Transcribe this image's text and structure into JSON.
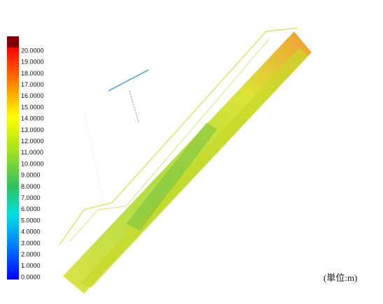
{
  "legend": {
    "labels": [
      "20.0000",
      "19.0000",
      "18.0000",
      "17.0000",
      "16.0000",
      "15.0000",
      "14.0000",
      "13.0000",
      "12.0000",
      "11.0000",
      "10.0000",
      "9.0000",
      "8.0000",
      "7.0000",
      "6.0000",
      "5.0000",
      "4.0000",
      "3.0000",
      "2.0000",
      "1.0000",
      "0.0000"
    ]
  },
  "unit": "(単位:m)"
}
